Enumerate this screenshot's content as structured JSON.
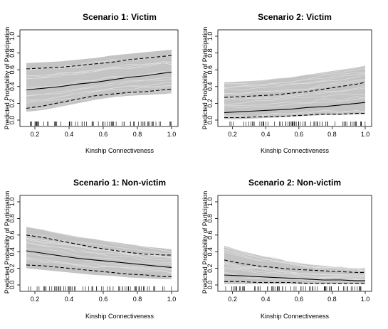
{
  "chart_data": [
    {
      "type": "line",
      "title": "Scenario 1: Victim",
      "xlabel": "Kinship Connectiveness",
      "ylabel": "Predicted Probability of Participation",
      "xlim": [
        0.15,
        1.0
      ],
      "ylim": [
        0.0,
        1.0
      ],
      "x_ticks": [
        "0.2",
        "0.4",
        "0.6",
        "0.8",
        "1.0"
      ],
      "y_ticks": [
        "0.0",
        "0.2",
        "0.4",
        "0.6",
        "0.8",
        "1.0"
      ],
      "x": [
        0.15,
        0.25,
        0.35,
        0.45,
        0.55,
        0.65,
        0.75,
        0.85,
        0.95,
        1.0
      ],
      "series": [
        {
          "role": "simulations_upper",
          "values": [
            0.68,
            0.69,
            0.7,
            0.72,
            0.74,
            0.77,
            0.79,
            0.81,
            0.83,
            0.84
          ]
        },
        {
          "role": "simulations_lower",
          "values": [
            0.1,
            0.12,
            0.16,
            0.2,
            0.24,
            0.27,
            0.29,
            0.3,
            0.31,
            0.32
          ]
        },
        {
          "role": "upper_ci",
          "values": [
            0.61,
            0.62,
            0.63,
            0.65,
            0.67,
            0.69,
            0.72,
            0.74,
            0.76,
            0.77
          ]
        },
        {
          "role": "mean",
          "values": [
            0.36,
            0.38,
            0.4,
            0.43,
            0.45,
            0.48,
            0.51,
            0.53,
            0.56,
            0.57
          ]
        },
        {
          "role": "lower_ci",
          "values": [
            0.14,
            0.17,
            0.21,
            0.25,
            0.29,
            0.31,
            0.33,
            0.34,
            0.36,
            0.37
          ]
        }
      ]
    },
    {
      "type": "line",
      "title": "Scenario 2: Victim",
      "xlabel": "Kinship Connectiveness",
      "ylabel": "Predicted Probability of Participation",
      "xlim": [
        0.15,
        1.0
      ],
      "ylim": [
        0.0,
        1.0
      ],
      "x_ticks": [
        "0.2",
        "0.4",
        "0.6",
        "0.8",
        "1.0"
      ],
      "y_ticks": [
        "0.0",
        "0.2",
        "0.4",
        "0.6",
        "0.8",
        "1.0"
      ],
      "x": [
        0.15,
        0.25,
        0.35,
        0.45,
        0.55,
        0.65,
        0.75,
        0.85,
        0.95,
        1.0
      ],
      "series": [
        {
          "role": "simulations_upper",
          "values": [
            0.45,
            0.46,
            0.47,
            0.49,
            0.51,
            0.54,
            0.57,
            0.6,
            0.63,
            0.65
          ]
        },
        {
          "role": "simulations_lower",
          "values": [
            0.01,
            0.01,
            0.02,
            0.03,
            0.04,
            0.05,
            0.06,
            0.06,
            0.07,
            0.07
          ]
        },
        {
          "role": "upper_ci",
          "values": [
            0.27,
            0.28,
            0.29,
            0.3,
            0.32,
            0.34,
            0.37,
            0.4,
            0.43,
            0.45
          ]
        },
        {
          "role": "mean",
          "values": [
            0.09,
            0.1,
            0.11,
            0.12,
            0.13,
            0.15,
            0.16,
            0.18,
            0.2,
            0.21
          ]
        },
        {
          "role": "lower_ci",
          "values": [
            0.03,
            0.03,
            0.04,
            0.04,
            0.05,
            0.06,
            0.07,
            0.07,
            0.08,
            0.08
          ]
        }
      ]
    },
    {
      "type": "line",
      "title": "Scenario 1: Non-victim",
      "xlabel": "Kinship Connectiveness",
      "ylabel": "Predicted Probability of Participation",
      "xlim": [
        0.15,
        1.0
      ],
      "ylim": [
        0.0,
        1.0
      ],
      "x_ticks": [
        "0.2",
        "0.4",
        "0.6",
        "0.8",
        "1.0"
      ],
      "y_ticks": [
        "0.0",
        "0.2",
        "0.4",
        "0.6",
        "0.8",
        "1.0"
      ],
      "x": [
        0.15,
        0.25,
        0.35,
        0.45,
        0.55,
        0.65,
        0.75,
        0.85,
        0.95,
        1.0
      ],
      "series": [
        {
          "role": "simulations_upper",
          "values": [
            0.7,
            0.66,
            0.62,
            0.58,
            0.55,
            0.52,
            0.49,
            0.46,
            0.44,
            0.43
          ]
        },
        {
          "role": "simulations_lower",
          "values": [
            0.2,
            0.18,
            0.16,
            0.14,
            0.12,
            0.11,
            0.09,
            0.08,
            0.07,
            0.07
          ]
        },
        {
          "role": "upper_ci",
          "values": [
            0.6,
            0.57,
            0.53,
            0.49,
            0.45,
            0.42,
            0.39,
            0.37,
            0.36,
            0.36
          ]
        },
        {
          "role": "mean",
          "values": [
            0.41,
            0.38,
            0.35,
            0.32,
            0.3,
            0.28,
            0.26,
            0.24,
            0.22,
            0.21
          ]
        },
        {
          "role": "lower_ci",
          "values": [
            0.24,
            0.23,
            0.21,
            0.19,
            0.17,
            0.15,
            0.13,
            0.12,
            0.1,
            0.1
          ]
        }
      ]
    },
    {
      "type": "line",
      "title": "Scenario 2: Non-victim",
      "xlabel": "Kinship Connectiveness",
      "ylabel": "Predicted Probability of Participation",
      "xlim": [
        0.15,
        1.0
      ],
      "ylim": [
        0.0,
        1.0
      ],
      "x_ticks": [
        "0.2",
        "0.4",
        "0.6",
        "0.8",
        "1.0"
      ],
      "y_ticks": [
        "0.0",
        "0.2",
        "0.4",
        "0.6",
        "0.8",
        "1.0"
      ],
      "x": [
        0.15,
        0.25,
        0.35,
        0.45,
        0.55,
        0.65,
        0.75,
        0.85,
        0.95,
        1.0
      ],
      "series": [
        {
          "role": "simulations_upper",
          "values": [
            0.47,
            0.41,
            0.36,
            0.32,
            0.28,
            0.25,
            0.23,
            0.21,
            0.2,
            0.2
          ]
        },
        {
          "role": "simulations_lower",
          "values": [
            0.01,
            0.01,
            0.01,
            0.01,
            0.01,
            0.01,
            0.01,
            0.01,
            0.01,
            0.01
          ]
        },
        {
          "role": "upper_ci",
          "values": [
            0.3,
            0.26,
            0.23,
            0.21,
            0.19,
            0.18,
            0.17,
            0.16,
            0.15,
            0.15
          ]
        },
        {
          "role": "mean",
          "values": [
            0.12,
            0.11,
            0.1,
            0.09,
            0.08,
            0.07,
            0.06,
            0.06,
            0.05,
            0.05
          ]
        },
        {
          "role": "lower_ci",
          "values": [
            0.04,
            0.04,
            0.03,
            0.03,
            0.03,
            0.02,
            0.02,
            0.02,
            0.02,
            0.02
          ]
        }
      ]
    }
  ]
}
